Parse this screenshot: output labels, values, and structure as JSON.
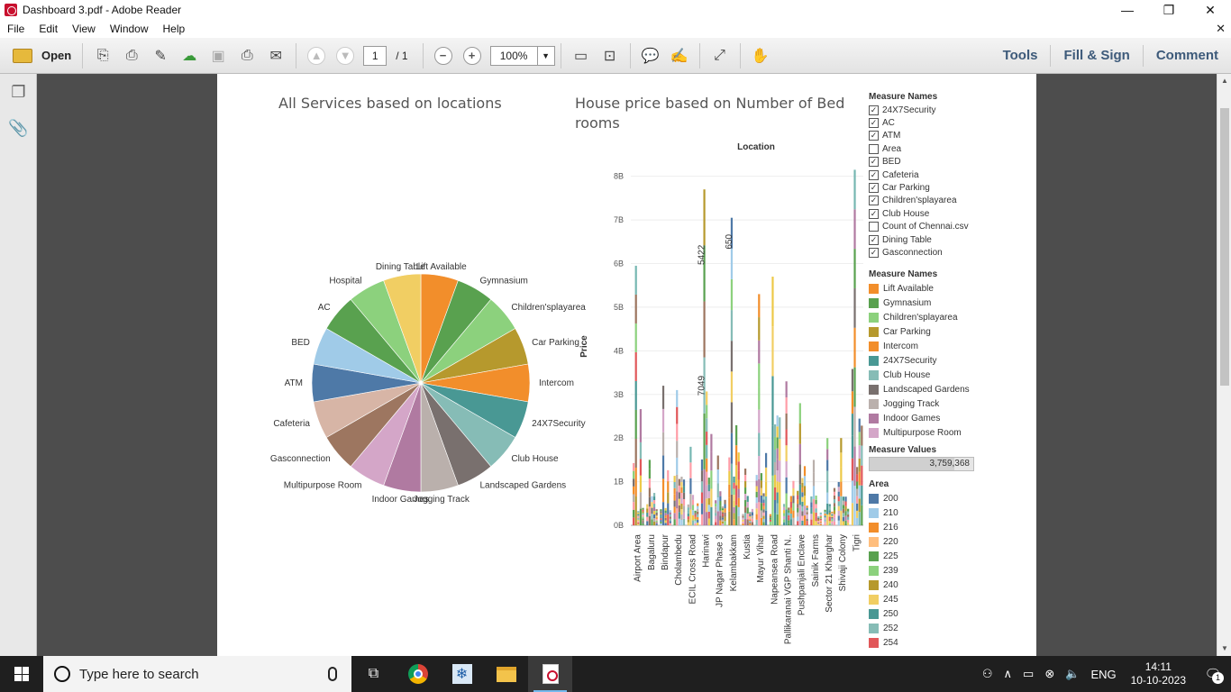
{
  "window": {
    "title": "Dashboard 3.pdf - Adobe Reader",
    "min": "—",
    "max": "❐",
    "close": "✕"
  },
  "menu": {
    "items": [
      "File",
      "Edit",
      "View",
      "Window",
      "Help"
    ],
    "close": "✕"
  },
  "toolbar": {
    "open_label": "Open",
    "page_current": "1",
    "page_total": "/ 1",
    "zoom": "100%",
    "tools_label": "Tools",
    "fill_sign_label": "Fill & Sign",
    "comment_label": "Comment"
  },
  "pie": {
    "title": "All Services based on locations",
    "slices": [
      {
        "label": "Lift Available",
        "value": 5.8,
        "color": "#f28e2b"
      },
      {
        "label": "Gymnasium",
        "value": 5.8,
        "color": "#59a14f"
      },
      {
        "label": "Children'splayarea",
        "value": 5.8,
        "color": "#8cd17d"
      },
      {
        "label": "Car Parking",
        "value": 5.8,
        "color": "#b6992d"
      },
      {
        "label": "Intercom",
        "value": 5.8,
        "color": "#f28e2b"
      },
      {
        "label": "24X7Security",
        "value": 5.8,
        "color": "#499894"
      },
      {
        "label": "Club House",
        "value": 5.8,
        "color": "#86bcb6"
      },
      {
        "label": "Landscaped Gardens",
        "value": 5.8,
        "color": "#79706e"
      },
      {
        "label": "Jogging Track",
        "value": 5.8,
        "color": "#bab0ac"
      },
      {
        "label": "Indoor Games",
        "value": 5.8,
        "color": "#b07aa1"
      },
      {
        "label": "Multipurpose Room",
        "value": 5.8,
        "color": "#d4a6c8"
      },
      {
        "label": "Gasconnection",
        "value": 5.8,
        "color": "#9d7660"
      },
      {
        "label": "Cafeteria",
        "value": 5.8,
        "color": "#d7b5a6"
      },
      {
        "label": "ATM",
        "value": 5.8,
        "color": "#4e79a7"
      },
      {
        "label": "BED",
        "value": 5.8,
        "color": "#a0cbe8"
      },
      {
        "label": "AC",
        "value": 5.8,
        "color": "#59a14f"
      },
      {
        "label": "Hospital",
        "value": 5.8,
        "color": "#8cd17d"
      },
      {
        "label": "Dining Table",
        "value": 5.8,
        "color": "#f1ce63"
      }
    ]
  },
  "bar": {
    "title_line1": "House price based on Number of Bed",
    "title_line2": "rooms",
    "header": "Location",
    "ylabel": "Price",
    "yticks": [
      "0B",
      "1B",
      "2B",
      "3B",
      "4B",
      "5B",
      "6B",
      "7B",
      "8B"
    ],
    "xlabels": [
      "Airport Area",
      "Bagaluru",
      "Bindapur",
      "Cholambedu",
      "ECIL Cross Road",
      "Harinavi",
      "JP Nagar Phase 3",
      "Kelambakkam",
      "Kustia",
      "Mayur Vihar",
      "Napeansea Road",
      "Pallikaranai VGP Shanti N..",
      "Pushpanjali Enclave",
      "Sainik Farms",
      "Sector 21 Kharghar",
      "Shivaji Colony",
      "Tigri"
    ],
    "annotations": [
      "5422",
      "7049",
      "650"
    ]
  },
  "chart_data": {
    "type": "bar",
    "title": "House price based on Number of Bed rooms",
    "xlabel": "Location",
    "ylabel": "Price",
    "ylim": [
      0,
      8200000000
    ],
    "units": "B",
    "categories": [
      "Airport Area",
      "Bagaluru",
      "Bindapur",
      "Cholambedu",
      "ECIL Cross Road",
      "Harinavi",
      "JP Nagar Phase 3",
      "Kelambakkam",
      "Kustia",
      "Mayur Vihar",
      "Napeansea Road",
      "Pallikaranai VGP Shanti N..",
      "Pushpanjali Enclave",
      "Sainik Farms",
      "Sector 21 Kharghar",
      "Shivaji Colony",
      "Tigri"
    ],
    "values": [
      5.95,
      1.5,
      3.2,
      3.1,
      1.8,
      7.7,
      1.6,
      7.05,
      1.3,
      5.3,
      5.7,
      3.3,
      2.8,
      1.5,
      2.0,
      2.0,
      8.15
    ]
  },
  "legend_checks": {
    "title": "Measure Names",
    "items": [
      {
        "label": "24X7Security",
        "checked": true
      },
      {
        "label": "AC",
        "checked": true
      },
      {
        "label": "ATM",
        "checked": true
      },
      {
        "label": "Area",
        "checked": false
      },
      {
        "label": "BED",
        "checked": true
      },
      {
        "label": "Cafeteria",
        "checked": true
      },
      {
        "label": "Car Parking",
        "checked": true
      },
      {
        "label": "Children'splayarea",
        "checked": true
      },
      {
        "label": "Club House",
        "checked": true
      },
      {
        "label": "Count of Chennai.csv",
        "checked": false
      },
      {
        "label": "Dining Table",
        "checked": true
      },
      {
        "label": "Gasconnection",
        "checked": true
      }
    ]
  },
  "legend_colors": {
    "title": "Measure Names",
    "items": [
      {
        "label": "Lift Available",
        "color": "#f28e2b"
      },
      {
        "label": "Gymnasium",
        "color": "#59a14f"
      },
      {
        "label": "Children'splayarea",
        "color": "#8cd17d"
      },
      {
        "label": "Car Parking",
        "color": "#b6992d"
      },
      {
        "label": "Intercom",
        "color": "#f28e2b"
      },
      {
        "label": "24X7Security",
        "color": "#499894"
      },
      {
        "label": "Club House",
        "color": "#86bcb6"
      },
      {
        "label": "Landscaped Gardens",
        "color": "#79706e"
      },
      {
        "label": "Jogging Track",
        "color": "#bab0ac"
      },
      {
        "label": "Indoor Games",
        "color": "#b07aa1"
      },
      {
        "label": "Multipurpose Room",
        "color": "#d4a6c8"
      }
    ]
  },
  "measure_values": {
    "title": "Measure Values",
    "value": "3,759,368"
  },
  "legend_area": {
    "title": "Area",
    "items": [
      {
        "label": "200",
        "color": "#4e79a7"
      },
      {
        "label": "210",
        "color": "#a0cbe8"
      },
      {
        "label": "216",
        "color": "#f28e2b"
      },
      {
        "label": "220",
        "color": "#ffbe7d"
      },
      {
        "label": "225",
        "color": "#59a14f"
      },
      {
        "label": "239",
        "color": "#8cd17d"
      },
      {
        "label": "240",
        "color": "#b6992d"
      },
      {
        "label": "245",
        "color": "#f1ce63"
      },
      {
        "label": "250",
        "color": "#499894"
      },
      {
        "label": "252",
        "color": "#86bcb6"
      },
      {
        "label": "254",
        "color": "#e15759"
      }
    ]
  },
  "taskbar": {
    "search_placeholder": "Type here to search",
    "lang": "ENG",
    "time": "14:11",
    "date": "10-10-2023",
    "notif_count": "1"
  }
}
